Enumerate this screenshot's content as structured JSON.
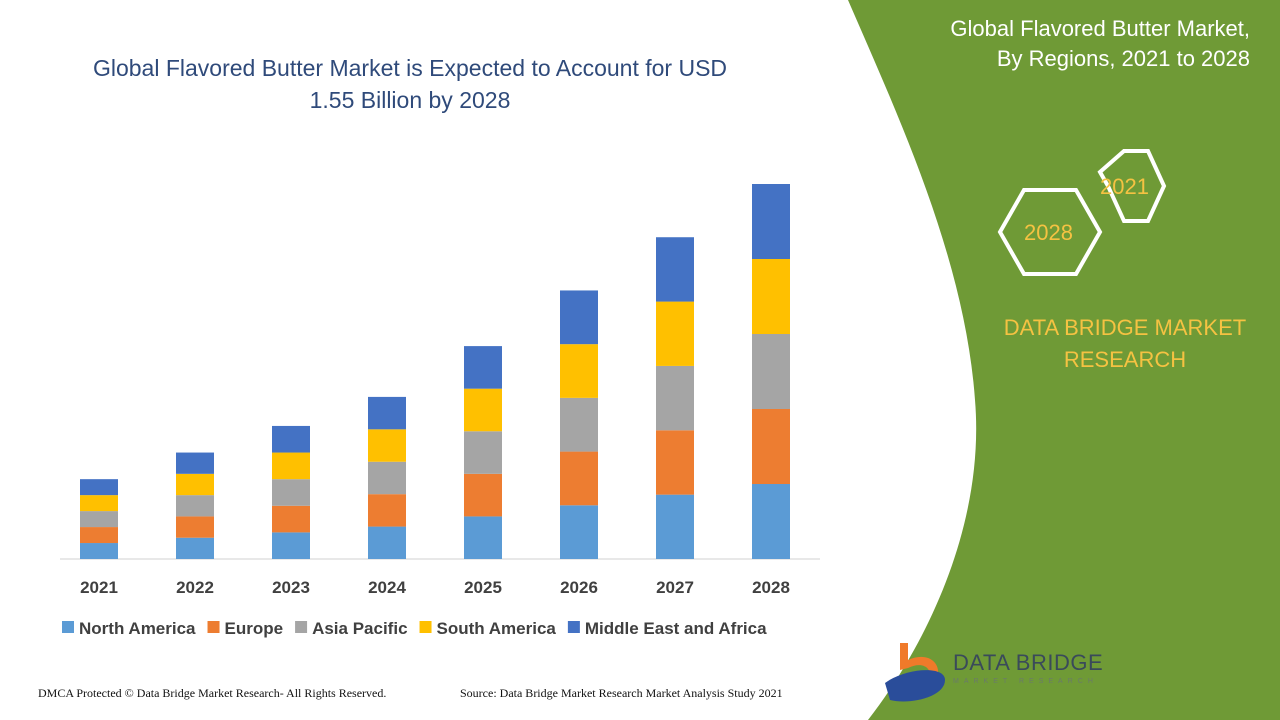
{
  "header": {
    "title_line1": "Global Flavored Butter Market is Expected to Account for USD",
    "title_line2": "1.55  Billion by 2028"
  },
  "side_panel": {
    "title_line1": "Global Flavored Butter Market,",
    "title_line2": "By Regions, 2021 to 2028",
    "hex_year_a": "2021",
    "hex_year_b": "2028",
    "brand_line1": "DATA BRIDGE MARKET",
    "brand_line2": "RESEARCH",
    "background_color": "#6f9a36",
    "accent_color": "#f5c242"
  },
  "logo": {
    "text": "DATA BRIDGE",
    "subtext": "MARKET RESEARCH"
  },
  "footer": {
    "left": "DMCA Protected © Data Bridge Market Research- All Rights Reserved.",
    "right": "Source: Data Bridge Market Research Market Analysis Study 2021"
  },
  "chart_data": {
    "type": "bar",
    "stacked": true,
    "title": "Global Flavored Butter Market is Expected to Account for USD 1.55 Billion by 2028",
    "categories": [
      "2021",
      "2022",
      "2023",
      "2024",
      "2025",
      "2026",
      "2027",
      "2028"
    ],
    "series": [
      {
        "name": "North America",
        "color": "#5b9bd5",
        "values": [
          0.066,
          0.088,
          0.11,
          0.134,
          0.176,
          0.222,
          0.266,
          0.31
        ]
      },
      {
        "name": "Europe",
        "color": "#ed7d31",
        "values": [
          0.066,
          0.088,
          0.11,
          0.134,
          0.176,
          0.222,
          0.266,
          0.31
        ]
      },
      {
        "name": "Asia Pacific",
        "color": "#a5a5a5",
        "values": [
          0.066,
          0.088,
          0.11,
          0.134,
          0.176,
          0.222,
          0.266,
          0.31
        ]
      },
      {
        "name": "South America",
        "color": "#ffc000",
        "values": [
          0.066,
          0.088,
          0.11,
          0.134,
          0.176,
          0.222,
          0.266,
          0.31
        ]
      },
      {
        "name": "Middle East and Africa",
        "color": "#4472c4",
        "values": [
          0.066,
          0.088,
          0.11,
          0.134,
          0.176,
          0.222,
          0.266,
          0.31
        ]
      }
    ],
    "ylim": [
      0,
      1.55
    ],
    "grid": false,
    "legend": "bottom",
    "xlabel": "",
    "ylabel": ""
  }
}
